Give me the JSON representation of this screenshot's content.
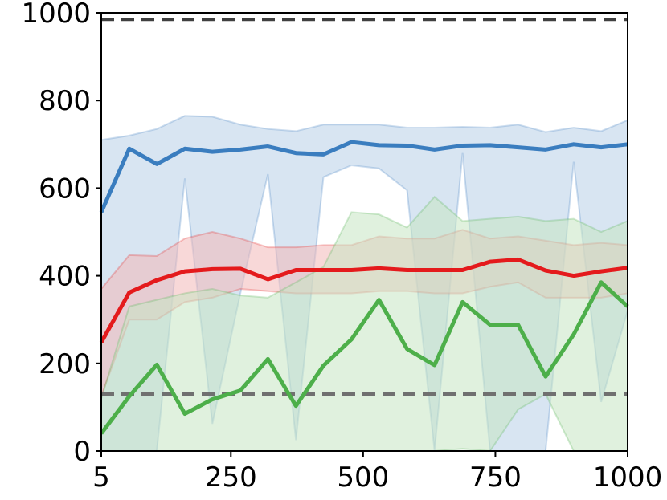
{
  "chart_data": {
    "type": "line",
    "title": "",
    "xlabel": "",
    "ylabel": "",
    "xlim": [
      5,
      1000
    ],
    "ylim": [
      0,
      1000
    ],
    "grid": false,
    "legend": "none",
    "x_ticks": [
      "5",
      "250",
      "500",
      "750",
      "1000"
    ],
    "y_ticks": [
      "0",
      "200",
      "400",
      "600",
      "800",
      "1000"
    ],
    "x": [
      5,
      58,
      110,
      163,
      215,
      268,
      320,
      373,
      425,
      478,
      530,
      583,
      635,
      688,
      740,
      793,
      845,
      898,
      950,
      1000
    ],
    "reference_lines": [
      {
        "y": 985,
        "color": "#404040",
        "style": "dashed"
      },
      {
        "y": 130,
        "color": "#707070",
        "style": "dashed"
      }
    ],
    "series": [
      {
        "color": "#3a7dbf",
        "fill": "#b8d0e8",
        "values": [
          545,
          690,
          655,
          690,
          683,
          688,
          695,
          680,
          677,
          705,
          698,
          697,
          688,
          697,
          698,
          693,
          688,
          700,
          693,
          700
        ],
        "upper": [
          710,
          720,
          735,
          765,
          763,
          745,
          735,
          730,
          745,
          745,
          745,
          738,
          738,
          740,
          738,
          745,
          728,
          738,
          730,
          755
        ],
        "lower": [
          0,
          0,
          0,
          622,
          62,
          360,
          632,
          25,
          625,
          652,
          645,
          595,
          0,
          680,
          0,
          0,
          0,
          660,
          112,
          320
        ]
      },
      {
        "color": "#e41a1c",
        "fill": "#f2b8b8",
        "values": [
          248,
          362,
          390,
          410,
          415,
          416,
          392,
          413,
          413,
          413,
          417,
          413,
          413,
          413,
          432,
          437,
          412,
          400,
          410,
          418
        ],
        "upper": [
          370,
          447,
          445,
          485,
          500,
          485,
          465,
          465,
          470,
          470,
          490,
          485,
          485,
          505,
          485,
          490,
          480,
          470,
          475,
          470
        ],
        "lower": [
          125,
          300,
          300,
          340,
          350,
          370,
          365,
          360,
          360,
          360,
          365,
          365,
          360,
          360,
          375,
          385,
          350,
          350,
          350,
          360
        ]
      },
      {
        "color": "#4daf4a",
        "fill": "#c6e5c2",
        "values": [
          40,
          125,
          197,
          85,
          118,
          138,
          210,
          103,
          195,
          255,
          345,
          233,
          196,
          340,
          288,
          288,
          170,
          266,
          385,
          330
        ],
        "upper": [
          120,
          330,
          345,
          360,
          370,
          355,
          350,
          385,
          420,
          545,
          540,
          510,
          580,
          525,
          530,
          535,
          525,
          530,
          500,
          525
        ],
        "lower": [
          0,
          0,
          0,
          0,
          0,
          0,
          0,
          0,
          0,
          0,
          0,
          0,
          0,
          5,
          0,
          95,
          130,
          0,
          0,
          0
        ]
      }
    ]
  }
}
